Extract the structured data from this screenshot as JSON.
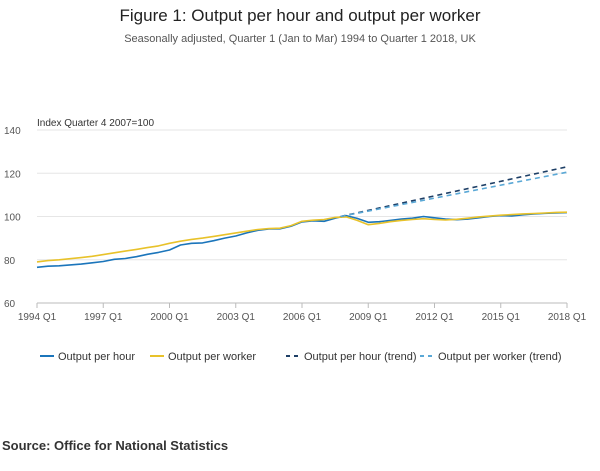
{
  "title": "Figure 1: Output per hour and output per worker",
  "subtitle": "Seasonally adjusted, Quarter 1 (Jan to Mar) 1994 to Quarter 1 2018, UK",
  "source": "Source: Office for National Statistics",
  "colors": {
    "output_per_hour": "#1b75bb",
    "output_per_worker": "#e8c22a",
    "output_per_hour_trend": "#1e3f66",
    "output_per_worker_trend": "#5aa8d6"
  },
  "chart_data": {
    "type": "line",
    "ylabel": "Index Quarter 4 2007=100",
    "ylim": [
      60,
      140
    ],
    "yticks": [
      "60",
      "80",
      "100",
      "120",
      "140"
    ],
    "xlim": [
      1994.0,
      2018.0
    ],
    "xtick_labels": [
      "1994 Q1",
      "1997 Q1",
      "2000 Q1",
      "2003 Q1",
      "2006 Q1",
      "2009 Q1",
      "2012 Q1",
      "2015 Q1",
      "2018 Q1"
    ],
    "xtick_values": [
      1994,
      1997,
      2000,
      2003,
      2006,
      2009,
      2012,
      2015,
      2018
    ],
    "grid": true,
    "legend_position": "bottom",
    "series": [
      {
        "name": "Output per hour",
        "style": "solid",
        "x": [
          1994,
          1994.5,
          1995,
          1995.5,
          1996,
          1996.5,
          1997,
          1997.5,
          1998,
          1998.5,
          1999,
          1999.5,
          2000,
          2000.5,
          2001,
          2001.5,
          2002,
          2002.5,
          2003,
          2003.5,
          2004,
          2004.5,
          2005,
          2005.5,
          2006,
          2006.5,
          2007,
          2007.5,
          2008,
          2008.5,
          2009,
          2009.5,
          2010,
          2010.5,
          2011,
          2011.5,
          2012,
          2012.5,
          2013,
          2013.5,
          2014,
          2014.5,
          2015,
          2015.5,
          2016,
          2016.5,
          2017,
          2017.5,
          2018
        ],
        "values": [
          76.5,
          77,
          77.2,
          77.6,
          78,
          78.6,
          79.2,
          80.2,
          80.6,
          81.4,
          82.5,
          83.4,
          84.5,
          86.8,
          87.6,
          87.8,
          88.8,
          90,
          91,
          92.4,
          93.6,
          94.2,
          94.3,
          95.5,
          97.5,
          98,
          97.8,
          99.2,
          100.4,
          99.1,
          97.3,
          97.6,
          98.2,
          98.8,
          99.2,
          100,
          99.4,
          98.8,
          98.5,
          98.8,
          99.4,
          100,
          100.4,
          100.3,
          100.8,
          101.2,
          101.5,
          101.6,
          101.8
        ]
      },
      {
        "name": "Output per worker",
        "style": "solid",
        "x": [
          1994,
          1994.5,
          1995,
          1995.5,
          1996,
          1996.5,
          1997,
          1997.5,
          1998,
          1998.5,
          1999,
          1999.5,
          2000,
          2000.5,
          2001,
          2001.5,
          2002,
          2002.5,
          2003,
          2003.5,
          2004,
          2004.5,
          2005,
          2005.5,
          2006,
          2006.5,
          2007,
          2007.5,
          2008,
          2008.5,
          2009,
          2009.5,
          2010,
          2010.5,
          2011,
          2011.5,
          2012,
          2012.5,
          2013,
          2013.5,
          2014,
          2014.5,
          2015,
          2015.5,
          2016,
          2016.5,
          2017,
          2017.5,
          2018
        ],
        "values": [
          79,
          79.6,
          80,
          80.5,
          81,
          81.6,
          82.4,
          83.2,
          84,
          84.8,
          85.6,
          86.4,
          87.6,
          88.6,
          89.4,
          90,
          90.8,
          91.6,
          92.4,
          93.2,
          94,
          94.4,
          94.6,
          95.8,
          97.8,
          98.3,
          98.6,
          99.6,
          99.8,
          98.2,
          96.2,
          96.8,
          97.6,
          98.2,
          98.6,
          99,
          98.6,
          98.4,
          98.7,
          99.2,
          99.8,
          100.2,
          100.6,
          100.9,
          101.2,
          101.4,
          101.6,
          101.9,
          102
        ]
      },
      {
        "name": "Output per hour (trend)",
        "style": "dashed",
        "x": [
          2007.75,
          2018
        ],
        "values": [
          100,
          123
        ]
      },
      {
        "name": "Output per worker (trend)",
        "style": "dashed",
        "x": [
          2007.75,
          2018
        ],
        "values": [
          100,
          120.5
        ]
      }
    ]
  }
}
